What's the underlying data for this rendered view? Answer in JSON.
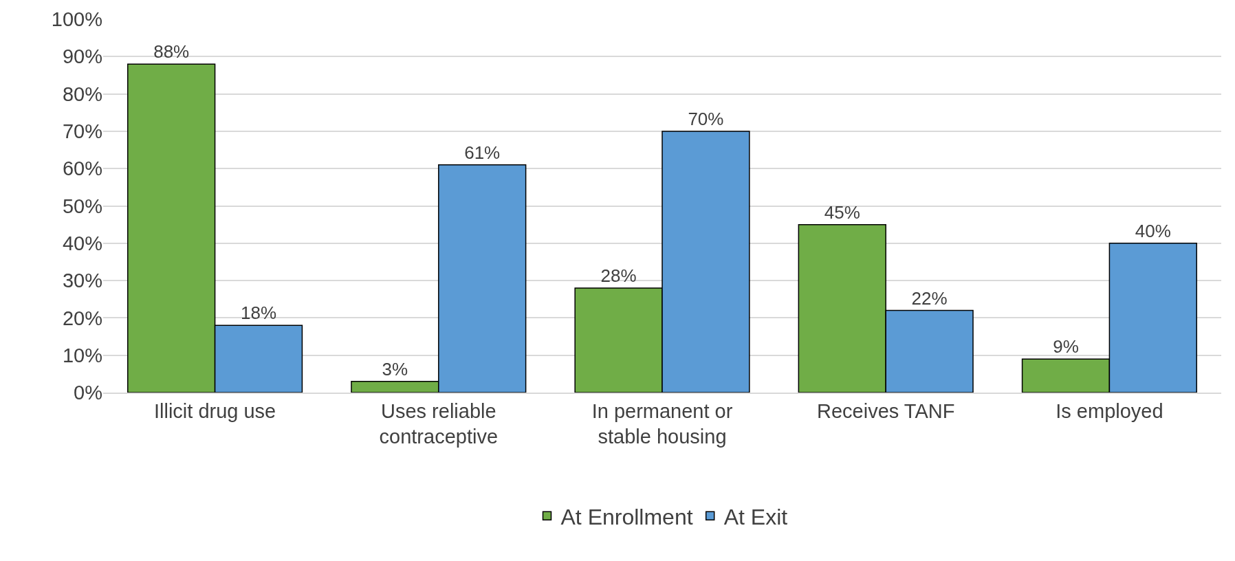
{
  "chart_data": {
    "type": "bar",
    "categories": [
      "Illicit drug use",
      "Uses reliable\ncontraceptive",
      "In permanent or\nstable housing",
      "Receives TANF",
      "Is employed"
    ],
    "series": [
      {
        "name": "At Enrollment",
        "color": "#70ad47",
        "values": [
          88,
          3,
          28,
          45,
          9
        ],
        "value_labels": [
          "88%",
          "3%",
          "28%",
          "45%",
          "9%"
        ]
      },
      {
        "name": "At Exit",
        "color": "#5b9bd5",
        "values": [
          18,
          61,
          70,
          22,
          40
        ],
        "value_labels": [
          "18%",
          "61%",
          "70%",
          "22%",
          "40%"
        ]
      }
    ],
    "ylim": [
      0,
      100
    ],
    "yticks": [
      {
        "value": 0,
        "label": "0%"
      },
      {
        "value": 10,
        "label": "10%"
      },
      {
        "value": 20,
        "label": "20%"
      },
      {
        "value": 30,
        "label": "30%"
      },
      {
        "value": 40,
        "label": "40%"
      },
      {
        "value": 50,
        "label": "50%"
      },
      {
        "value": 60,
        "label": "60%"
      },
      {
        "value": 70,
        "label": "70%"
      },
      {
        "value": 80,
        "label": "80%"
      },
      {
        "value": 90,
        "label": "90%"
      },
      {
        "value": 100,
        "label": "100%"
      }
    ],
    "grid": "y",
    "legend": "bottom"
  }
}
